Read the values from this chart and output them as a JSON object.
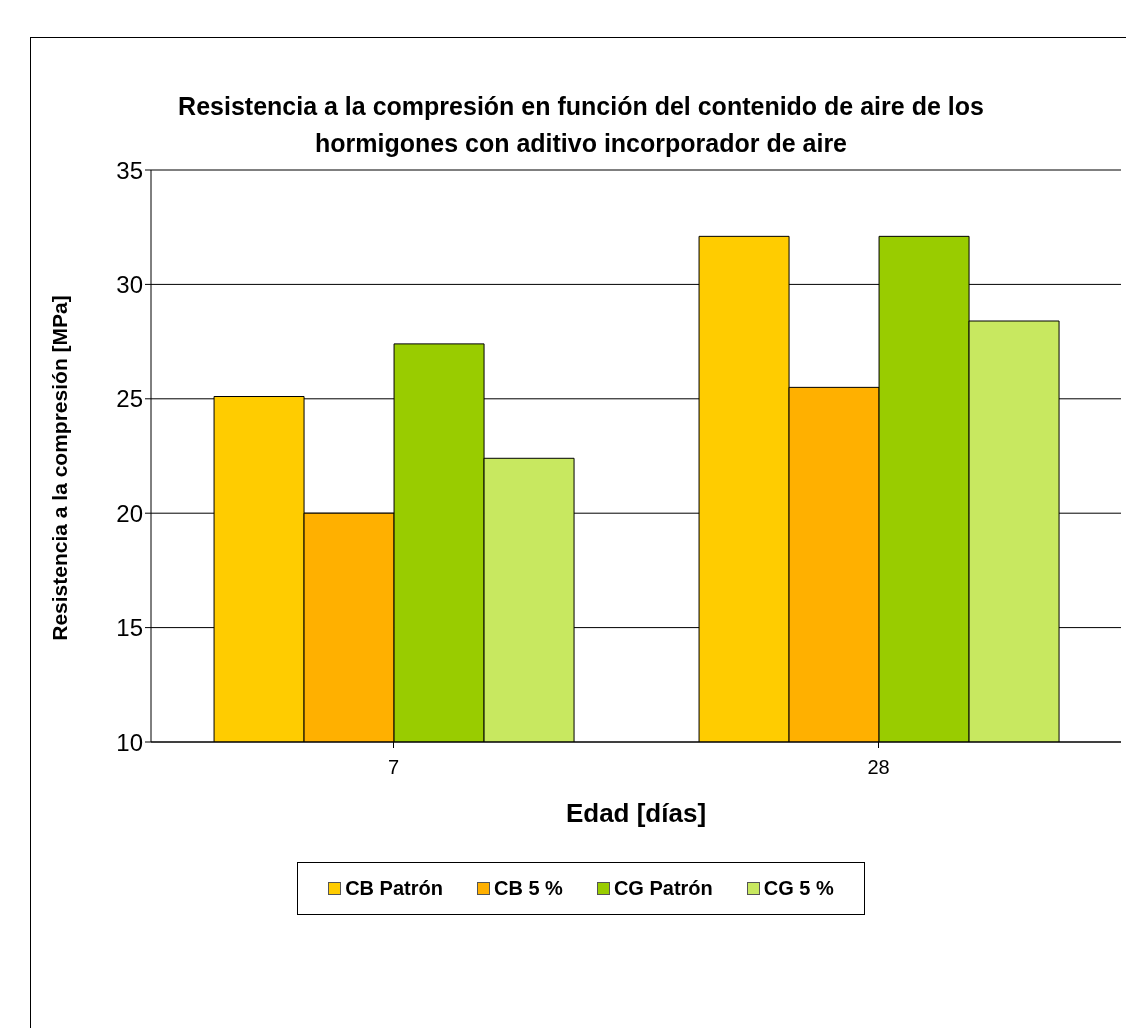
{
  "chart_data": {
    "type": "bar",
    "title": "Resistencia a la compresión en función del contenido de aire de los hormigones con aditivo incorporador de aire",
    "xlabel": "Edad [días]",
    "ylabel": "Resistencia a la compresión [MPa]",
    "categories": [
      "7",
      "28"
    ],
    "series": [
      {
        "name": "CB Patrón",
        "color": "#ffcc00",
        "values": [
          25.1,
          32.1
        ]
      },
      {
        "name": "CB 5 %",
        "color": "#ffb000",
        "values": [
          20.0,
          25.5
        ]
      },
      {
        "name": "CG Patrón",
        "color": "#99cc00",
        "values": [
          27.4,
          32.1
        ]
      },
      {
        "name": "CG 5 %",
        "color": "#c8e860",
        "values": [
          22.4,
          28.4
        ]
      }
    ],
    "ylim": [
      10,
      35
    ],
    "yticks": [
      10,
      15,
      20,
      25,
      30,
      35
    ],
    "grid": "y",
    "legend": "bottom"
  }
}
